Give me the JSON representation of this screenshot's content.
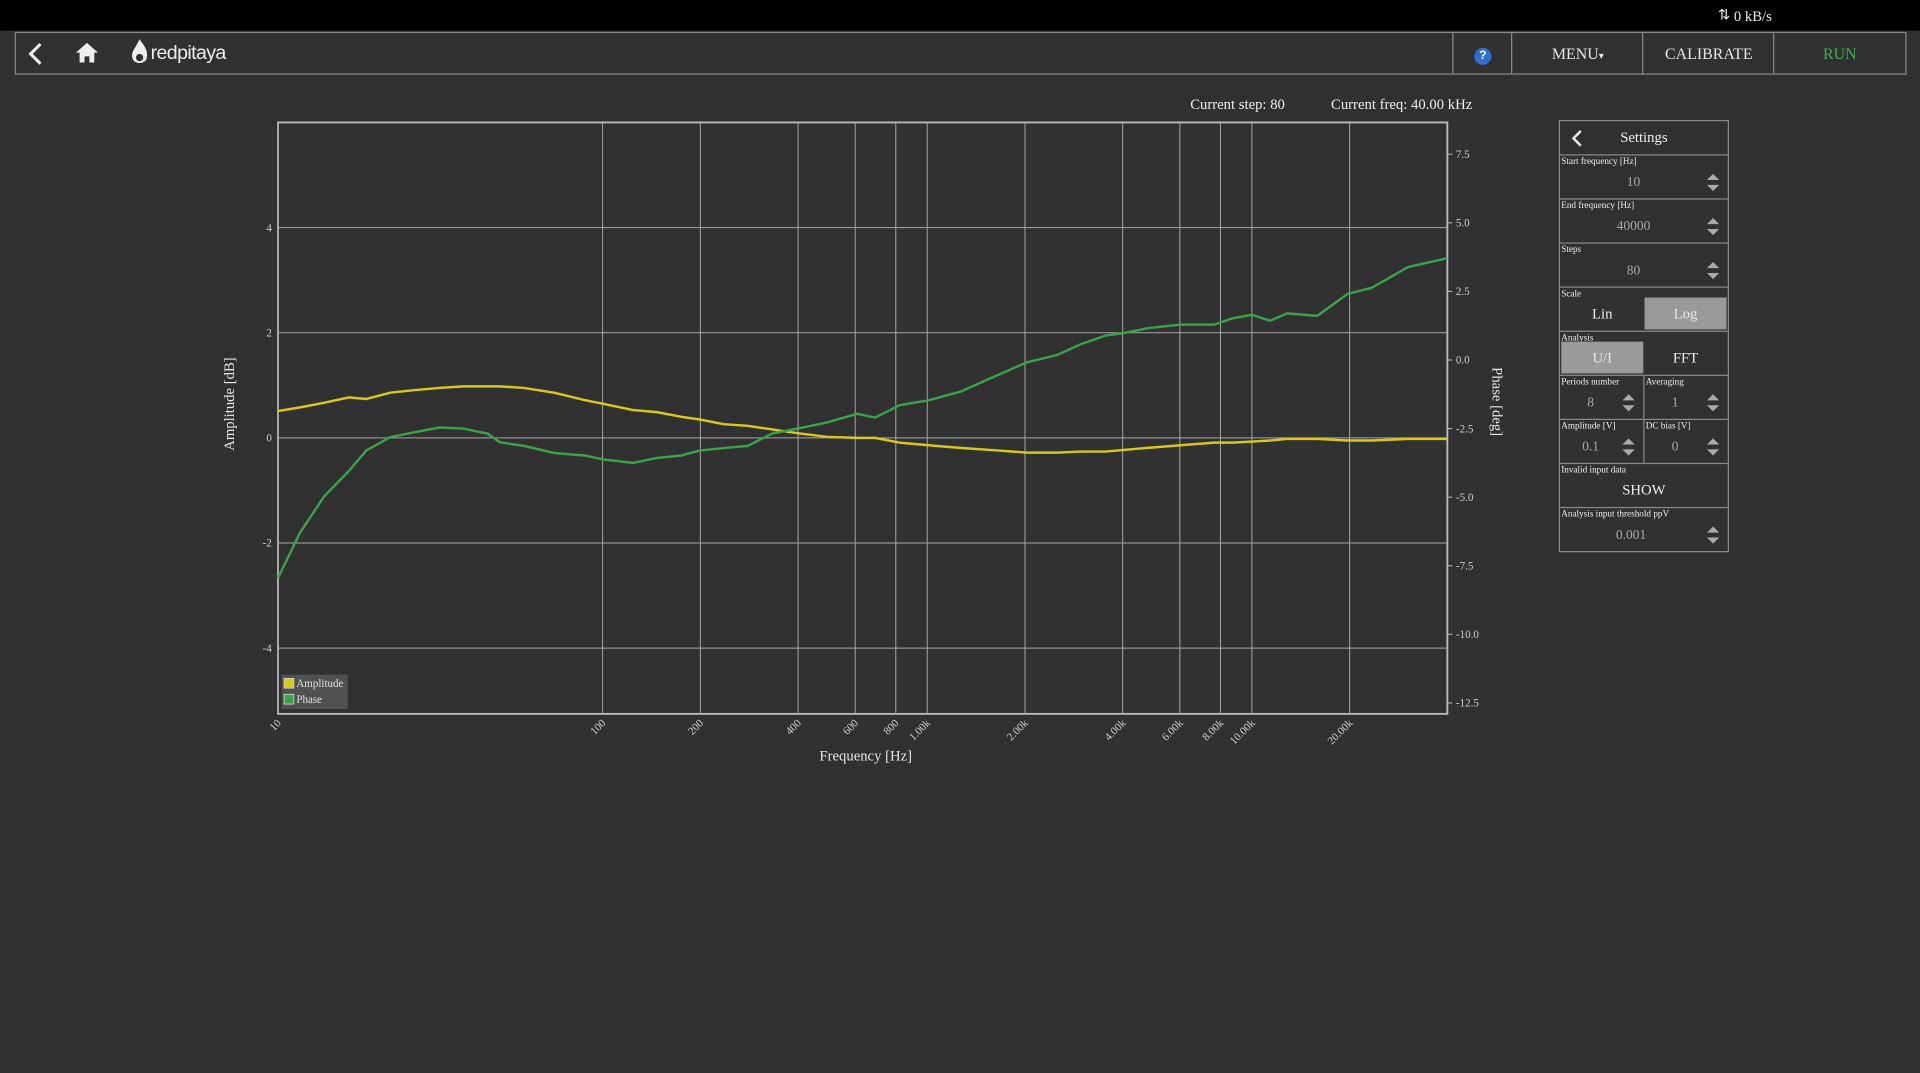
{
  "status_bar": {
    "rate": "0 kB/s"
  },
  "navbar": {
    "logo": "redpitaya",
    "help": "?",
    "menu": "MENU",
    "calibrate": "CALIBRATE",
    "run": "RUN"
  },
  "status": {
    "step_label": "Current step:",
    "step": "80",
    "freq_label": "Current freq:",
    "freq": "40.00 kHz"
  },
  "settings": {
    "title": "Settings",
    "start_frequency": {
      "label": "Start frequency [Hz]",
      "value": "10"
    },
    "end_frequency": {
      "label": "End frequency [Hz]",
      "value": "40000"
    },
    "steps": {
      "label": "Steps",
      "value": "80"
    },
    "scale": {
      "label": "Scale",
      "options": [
        "Lin",
        "Log"
      ]
    },
    "analysis": {
      "label": "Analysis",
      "options": [
        "U/I",
        "FFT"
      ]
    },
    "periods_number": {
      "label": "Periods number",
      "value": "8"
    },
    "averaging": {
      "label": "Averaging",
      "value": "1"
    },
    "amplitude": {
      "label": "Amplitude [V]",
      "value": "0.1"
    },
    "dc_bias": {
      "label": "DC bias [V]",
      "value": "0"
    },
    "invalid_input_data": {
      "label": "Invalid input data",
      "value": "SHOW"
    },
    "threshold": {
      "label": "Analysis input threshold ppV",
      "value": "0.001"
    }
  },
  "chart_data": {
    "type": "line",
    "xlabel": "Frequency [Hz]",
    "ylabel": "Amplitude [dB]",
    "y2label": "Phase [deg]",
    "xscale": "log",
    "grid": true,
    "x": [
      10,
      11.7,
      13.9,
      16.5,
      18.7,
      22.2,
      26.4,
      31.4,
      37.2,
      44.2,
      48.2,
      57.2,
      70.9,
      87.9,
      100,
      124,
      147,
      175,
      199,
      236,
      280,
      333,
      399,
      490,
      608,
      691,
      821,
      1009,
      1261,
      1563,
      2023,
      2508,
      2978,
      3536,
      4022,
      4775,
      6026,
      7656,
      8710,
      10000,
      11375,
      12830,
      15890,
      19720,
      23390,
      30270,
      40000
    ],
    "series": [
      {
        "name": "Amplitude",
        "color": "#d8c81e",
        "values": [
          0.51,
          0.58,
          0.67,
          0.77,
          0.74,
          0.86,
          0.91,
          0.95,
          0.98,
          0.98,
          0.98,
          0.95,
          0.86,
          0.72,
          0.65,
          0.53,
          0.49,
          0.4,
          0.35,
          0.26,
          0.23,
          0.16,
          0.09,
          0.02,
          0,
          0,
          -0.09,
          -0.14,
          -0.19,
          -0.23,
          -0.28,
          -0.28,
          -0.26,
          -0.26,
          -0.23,
          -0.19,
          -0.14,
          -0.09,
          -0.09,
          -0.07,
          -0.05,
          -0.02,
          -0.02,
          -0.05,
          -0.05,
          -0.02,
          -0.02
        ]
      },
      {
        "name": "Phase",
        "color": "#3ca04c",
        "axis": "y2",
        "values": [
          -7.95,
          -6.29,
          -4.96,
          -4.06,
          -3.3,
          -2.81,
          -2.63,
          -2.46,
          -2.5,
          -2.68,
          -3.0,
          -3.13,
          -3.39,
          -3.48,
          -3.62,
          -3.75,
          -3.57,
          -3.48,
          -3.3,
          -3.21,
          -3.13,
          -2.68,
          -2.5,
          -2.28,
          -1.96,
          -2.1,
          -1.65,
          -1.47,
          -1.16,
          -0.67,
          -0.09,
          0.18,
          0.58,
          0.89,
          0.98,
          1.16,
          1.29,
          1.29,
          1.52,
          1.65,
          1.43,
          1.7,
          1.61,
          2.41,
          2.63,
          3.39,
          3.71
        ]
      }
    ],
    "xlim": [
      10,
      40000
    ],
    "xticks": [
      10,
      100,
      200,
      400,
      600,
      800,
      {
        "value": 1000,
        "label": "1.00k"
      },
      {
        "value": 2000,
        "label": "2.00k"
      },
      {
        "value": 4000,
        "label": "4.00k"
      },
      {
        "value": 6000,
        "label": "6.00k"
      },
      {
        "value": 8000,
        "label": "8.00k"
      },
      {
        "value": 10000,
        "label": "10.00k"
      },
      {
        "value": 20000,
        "label": "20.00k"
      }
    ],
    "ylim": [
      -5.25,
      6
    ],
    "yticks": [
      -4,
      -2,
      0,
      2,
      4
    ],
    "y2lim": [
      -12.9,
      8.66
    ],
    "y2ticks": [
      7.5,
      {
        "value": 5,
        "label": "5.0"
      },
      2.5,
      {
        "value": 0,
        "label": "0.0"
      },
      -2.5,
      {
        "value": -5,
        "label": "-5.0"
      },
      -7.5,
      {
        "value": -10,
        "label": "-10.0"
      },
      -12.5
    ]
  }
}
